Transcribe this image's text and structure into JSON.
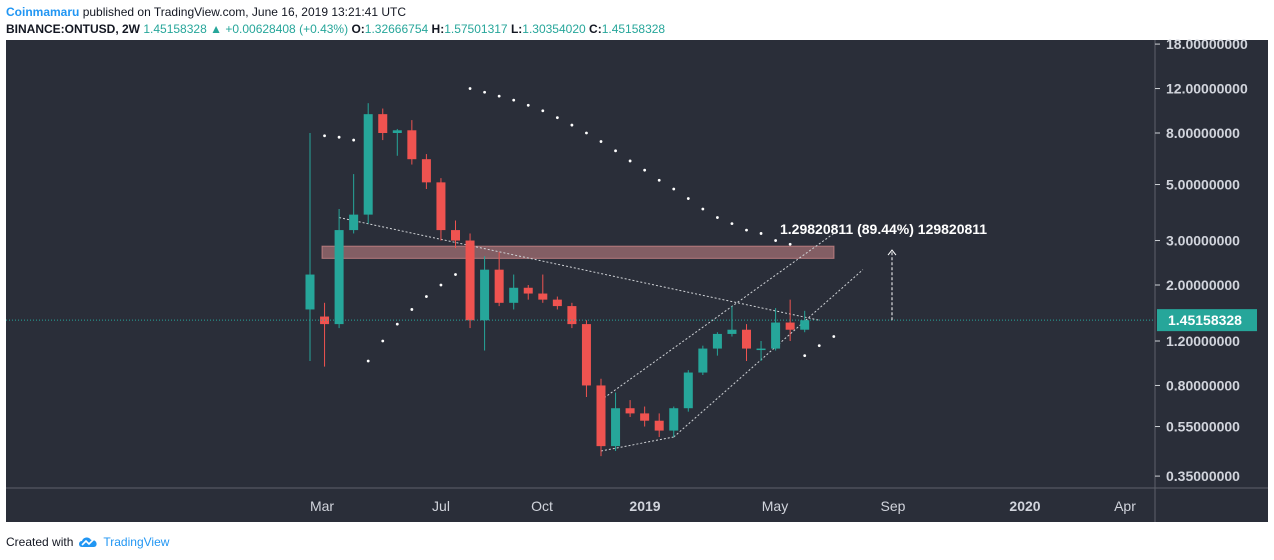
{
  "header": {
    "publisher": "Coinmamaru",
    "published_text": "published on TradingView.com, June 16, 2019 13:21:41 UTC",
    "symbol": "BINANCE:ONTUSD, 2W",
    "last": "1.45158328",
    "change_arrow": "▲",
    "change": "+0.00628408 (+0.43%)",
    "o_label": "O:",
    "o_value": "1.32666754",
    "h_label": "H:",
    "h_value": "1.57501317",
    "l_label": "L:",
    "l_value": "1.30354020",
    "c_label": "C:",
    "c_value": "1.45158328"
  },
  "footer": {
    "created_with": "Created with",
    "brand": "TradingView",
    "logo_icon": "tradingview-cloud-icon"
  },
  "colors": {
    "background": "#2a2e39",
    "up": "#26a69a",
    "down": "#ef5350",
    "price_line": "#26a69a",
    "zone": "#ef9a9a",
    "annotation": "#ffffff"
  },
  "chart_data": {
    "type": "candlestick",
    "scale": "log",
    "y_ticks": [
      "18.00000000",
      "12.00000000",
      "8.00000000",
      "5.00000000",
      "3.00000000",
      "2.00000000",
      "1.20000000",
      "0.80000000",
      "0.55000000",
      "0.35000000"
    ],
    "y_tick_values": [
      18,
      12,
      8,
      5,
      3,
      2,
      1.2,
      0.8,
      0.55,
      0.35
    ],
    "x_ticks": [
      {
        "label": "Mar",
        "bold": false,
        "date": "2018-03"
      },
      {
        "label": "Jul",
        "bold": false,
        "date": "2018-07"
      },
      {
        "label": "Oct",
        "bold": false,
        "date": "2018-10"
      },
      {
        "label": "2019",
        "bold": true,
        "date": "2019-01"
      },
      {
        "label": "May",
        "bold": false,
        "date": "2019-05"
      },
      {
        "label": "Sep",
        "bold": false,
        "date": "2019-09"
      },
      {
        "label": "2020",
        "bold": true,
        "date": "2020-01"
      },
      {
        "label": "Apr",
        "bold": false,
        "date": "2020-04"
      }
    ],
    "current_price": 1.45158328,
    "current_price_label": "1.45158328",
    "candles": [
      {
        "o": 1.6,
        "h": 8.0,
        "l": 1.0,
        "c": 2.2
      },
      {
        "o": 1.5,
        "h": 1.7,
        "l": 0.95,
        "c": 1.4
      },
      {
        "o": 1.4,
        "h": 4.0,
        "l": 1.35,
        "c": 3.3
      },
      {
        "o": 3.3,
        "h": 5.5,
        "l": 3.2,
        "c": 3.8
      },
      {
        "o": 3.8,
        "h": 10.5,
        "l": 3.5,
        "c": 9.5
      },
      {
        "o": 9.5,
        "h": 10.0,
        "l": 7.5,
        "c": 8.0
      },
      {
        "o": 8.0,
        "h": 8.3,
        "l": 6.5,
        "c": 8.2
      },
      {
        "o": 8.2,
        "h": 9.0,
        "l": 6.0,
        "c": 6.3
      },
      {
        "o": 6.3,
        "h": 6.6,
        "l": 4.8,
        "c": 5.1
      },
      {
        "o": 5.1,
        "h": 5.3,
        "l": 3.0,
        "c": 3.3
      },
      {
        "o": 3.3,
        "h": 3.6,
        "l": 2.8,
        "c": 3.0
      },
      {
        "o": 3.0,
        "h": 3.2,
        "l": 1.35,
        "c": 1.45
      },
      {
        "o": 1.45,
        "h": 2.6,
        "l": 1.1,
        "c": 2.3
      },
      {
        "o": 2.3,
        "h": 2.7,
        "l": 1.65,
        "c": 1.7
      },
      {
        "o": 1.7,
        "h": 2.2,
        "l": 1.6,
        "c": 1.95
      },
      {
        "o": 1.95,
        "h": 2.0,
        "l": 1.75,
        "c": 1.85
      },
      {
        "o": 1.85,
        "h": 2.2,
        "l": 1.7,
        "c": 1.75
      },
      {
        "o": 1.75,
        "h": 1.8,
        "l": 1.6,
        "c": 1.65
      },
      {
        "o": 1.65,
        "h": 1.7,
        "l": 1.35,
        "c": 1.4
      },
      {
        "o": 1.4,
        "h": 1.45,
        "l": 0.72,
        "c": 0.8
      },
      {
        "o": 0.8,
        "h": 0.85,
        "l": 0.42,
        "c": 0.46
      },
      {
        "o": 0.46,
        "h": 0.75,
        "l": 0.44,
        "c": 0.65
      },
      {
        "o": 0.65,
        "h": 0.7,
        "l": 0.6,
        "c": 0.62
      },
      {
        "o": 0.62,
        "h": 0.66,
        "l": 0.55,
        "c": 0.58
      },
      {
        "o": 0.58,
        "h": 0.62,
        "l": 0.5,
        "c": 0.53
      },
      {
        "o": 0.53,
        "h": 0.66,
        "l": 0.5,
        "c": 0.65
      },
      {
        "o": 0.65,
        "h": 0.92,
        "l": 0.63,
        "c": 0.9
      },
      {
        "o": 0.9,
        "h": 1.15,
        "l": 0.88,
        "c": 1.12
      },
      {
        "o": 1.12,
        "h": 1.3,
        "l": 1.05,
        "c": 1.28
      },
      {
        "o": 1.28,
        "h": 1.65,
        "l": 1.25,
        "c": 1.33
      },
      {
        "o": 1.33,
        "h": 1.4,
        "l": 1.0,
        "c": 1.12
      },
      {
        "o": 1.12,
        "h": 1.2,
        "l": 1.0,
        "c": 1.12
      },
      {
        "o": 1.12,
        "h": 1.62,
        "l": 1.1,
        "c": 1.42
      },
      {
        "o": 1.42,
        "h": 1.75,
        "l": 1.2,
        "c": 1.33
      },
      {
        "o": 1.33,
        "h": 1.58,
        "l": 1.3,
        "c": 1.45
      }
    ],
    "zone": {
      "low": 2.55,
      "high": 2.85
    },
    "annotation": {
      "text": "1.29820811 (89.44%) 129820811",
      "from": 1.45,
      "to": 2.75
    },
    "sar_dots": [
      {
        "i": 1,
        "v": 7.8
      },
      {
        "i": 2,
        "v": 7.7
      },
      {
        "i": 3,
        "v": 7.5
      },
      {
        "i": 4,
        "v": 1.0
      },
      {
        "i": 5,
        "v": 1.2
      },
      {
        "i": 6,
        "v": 1.4
      },
      {
        "i": 7,
        "v": 1.6
      },
      {
        "i": 8,
        "v": 1.8
      },
      {
        "i": 9,
        "v": 2.0
      },
      {
        "i": 10,
        "v": 2.2
      },
      {
        "i": 11,
        "v": 12.0
      },
      {
        "i": 12,
        "v": 11.6
      },
      {
        "i": 13,
        "v": 11.2
      },
      {
        "i": 14,
        "v": 10.8
      },
      {
        "i": 15,
        "v": 10.3
      },
      {
        "i": 16,
        "v": 9.8
      },
      {
        "i": 17,
        "v": 9.2
      },
      {
        "i": 18,
        "v": 8.6
      },
      {
        "i": 19,
        "v": 8.0
      },
      {
        "i": 20,
        "v": 7.4
      },
      {
        "i": 21,
        "v": 6.8
      },
      {
        "i": 22,
        "v": 6.2
      },
      {
        "i": 23,
        "v": 5.7
      },
      {
        "i": 24,
        "v": 5.2
      },
      {
        "i": 25,
        "v": 4.8
      },
      {
        "i": 26,
        "v": 4.4
      },
      {
        "i": 27,
        "v": 4.0
      },
      {
        "i": 28,
        "v": 3.7
      },
      {
        "i": 29,
        "v": 3.5
      },
      {
        "i": 30,
        "v": 3.3
      },
      {
        "i": 31,
        "v": 3.2
      },
      {
        "i": 32,
        "v": 3.0
      },
      {
        "i": 33,
        "v": 2.9
      },
      {
        "i": 34,
        "v": 1.05
      },
      {
        "i": 35,
        "v": 1.15
      },
      {
        "i": 36,
        "v": 1.25
      }
    ],
    "trendlines": [
      {
        "i1": 2,
        "v1": 3.7,
        "i2": 35,
        "v2": 1.45
      },
      {
        "i1": 20,
        "v1": 0.44,
        "i2": 25,
        "v2": 0.5
      },
      {
        "i1": 25,
        "v1": 0.5,
        "i2": 38,
        "v2": 2.3
      },
      {
        "i1": 20,
        "v1": 0.7,
        "i2": 36,
        "v2": 3.2
      }
    ]
  }
}
